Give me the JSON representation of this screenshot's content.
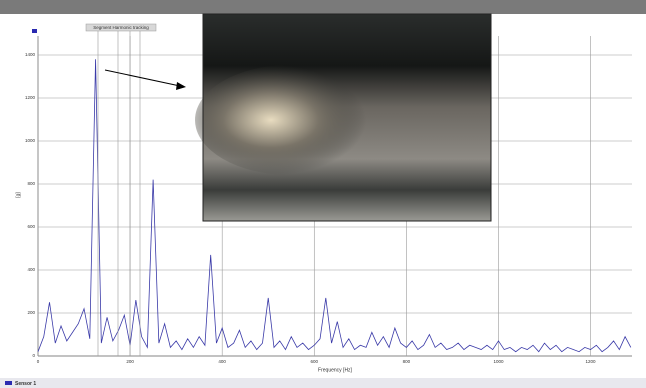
{
  "chart_data": {
    "type": "line",
    "header_label": "Segment Harmonic tracking",
    "xlabel": "Frequency [Hz]",
    "ylabel": "[g]",
    "x": [
      0,
      12.5,
      25,
      37.5,
      50,
      62.5,
      75,
      87.5,
      100,
      112.5,
      125,
      137.5,
      150,
      162.5,
      175,
      187.5,
      200,
      212.5,
      225,
      237.5,
      250,
      262.5,
      275,
      287.5,
      300,
      312.5,
      325,
      337.5,
      350,
      362.5,
      375,
      387.5,
      400,
      412.5,
      425,
      437.5,
      450,
      462.5,
      475,
      487.5,
      500,
      512.5,
      525,
      537.5,
      550,
      562.5,
      575,
      587.5,
      600,
      612.5,
      625,
      637.5,
      650,
      662.5,
      675,
      687.5,
      700,
      712.5,
      725,
      737.5,
      750,
      762.5,
      775,
      787.5,
      800,
      812.5,
      825,
      837.5,
      850,
      862.5,
      875,
      887.5,
      900,
      912.5,
      925,
      937.5,
      950,
      962.5,
      975,
      987.5,
      1000,
      1012.5,
      1025,
      1037.5,
      1050,
      1062.5,
      1075,
      1087.5,
      1100,
      1112.5,
      1125,
      1137.5,
      1150,
      1162.5,
      1175,
      1187.5,
      1200,
      1212.5,
      1225,
      1237.5,
      1250,
      1262.5,
      1275,
      1287.5
    ],
    "series": [
      {
        "name": "Sensor 1",
        "color": "#3a3aa8",
        "values": [
          20,
          90,
          250,
          60,
          140,
          70,
          110,
          150,
          220,
          80,
          1380,
          60,
          180,
          70,
          120,
          190,
          50,
          260,
          90,
          40,
          820,
          60,
          150,
          40,
          70,
          30,
          80,
          40,
          90,
          50,
          470,
          60,
          130,
          40,
          60,
          120,
          40,
          70,
          30,
          60,
          270,
          40,
          70,
          30,
          90,
          40,
          60,
          30,
          50,
          80,
          270,
          60,
          160,
          40,
          80,
          30,
          50,
          40,
          110,
          50,
          90,
          40,
          130,
          60,
          40,
          70,
          30,
          50,
          100,
          40,
          60,
          30,
          40,
          60,
          30,
          50,
          40,
          30,
          50,
          30,
          70,
          30,
          40,
          20,
          40,
          30,
          50,
          20,
          60,
          30,
          50,
          20,
          40,
          30,
          20,
          40,
          30,
          50,
          20,
          40,
          70,
          30,
          90,
          40
        ]
      }
    ],
    "xlim": [
      0,
      1290
    ],
    "ylim": [
      0,
      1400
    ],
    "xticks": [
      0,
      200,
      400,
      600,
      800,
      1000,
      1200
    ],
    "yticks": [
      0,
      200,
      400,
      600,
      800,
      1000,
      1200,
      1400
    ],
    "grid": true
  }
}
